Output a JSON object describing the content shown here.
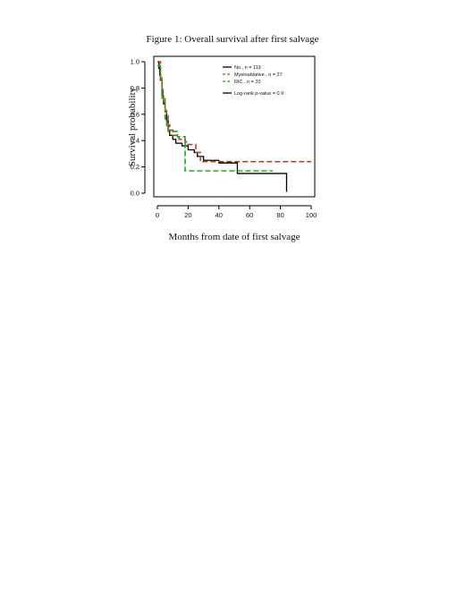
{
  "page": {
    "title": "Figure 1: Overall survival after first salvage"
  },
  "chart_data": {
    "type": "line",
    "xlabel": "Months from date of first salvage",
    "ylabel": "Survival probability",
    "xlim": [
      0,
      100
    ],
    "ylim": [
      0,
      1
    ],
    "xticks": [
      "0",
      "20",
      "40",
      "60",
      "80",
      "100"
    ],
    "yticks": [
      "0.0",
      "0.2",
      "0.4",
      "0.6",
      "0.8",
      "1.0"
    ],
    "legend_position": "top-right",
    "annotation": "Log-rank p-value = 0.9",
    "series": [
      {
        "name": "No , n = 119",
        "color": "#000000",
        "dash": "",
        "points": [
          [
            0,
            1.0
          ],
          [
            1,
            0.95
          ],
          [
            1.5,
            0.9
          ],
          [
            2,
            0.86
          ],
          [
            3,
            0.79
          ],
          [
            3.5,
            0.74
          ],
          [
            4,
            0.68
          ],
          [
            5,
            0.62
          ],
          [
            6,
            0.55
          ],
          [
            7,
            0.48
          ],
          [
            8,
            0.44
          ],
          [
            10,
            0.41
          ],
          [
            12,
            0.38
          ],
          [
            16,
            0.36
          ],
          [
            20,
            0.33
          ],
          [
            24,
            0.31
          ],
          [
            26,
            0.28
          ],
          [
            30,
            0.25
          ],
          [
            40,
            0.23
          ],
          [
            52,
            0.22
          ],
          [
            52,
            0.15
          ],
          [
            84,
            0.15
          ],
          [
            84,
            0.01
          ]
        ]
      },
      {
        "name": "Myeloablative , n = 27",
        "color": "#b5452a",
        "dash": "6,3",
        "points": [
          [
            0,
            1.0
          ],
          [
            2,
            0.85
          ],
          [
            3,
            0.74
          ],
          [
            4,
            0.7
          ],
          [
            5,
            0.63
          ],
          [
            6,
            0.59
          ],
          [
            7,
            0.52
          ],
          [
            8,
            0.48
          ],
          [
            10,
            0.44
          ],
          [
            14,
            0.41
          ],
          [
            18,
            0.39
          ],
          [
            20,
            0.37
          ],
          [
            25,
            0.31
          ],
          [
            28,
            0.24
          ],
          [
            100,
            0.24
          ]
        ]
      },
      {
        "name": "RIC , n = 20",
        "color": "#22aa22",
        "dash": "6,3",
        "points": [
          [
            0,
            0.97
          ],
          [
            2,
            0.9
          ],
          [
            3,
            0.72
          ],
          [
            5,
            0.55
          ],
          [
            6,
            0.5
          ],
          [
            7,
            0.47
          ],
          [
            12,
            0.47
          ],
          [
            13,
            0.43
          ],
          [
            17,
            0.43
          ],
          [
            18,
            0.17
          ],
          [
            52,
            0.17
          ],
          [
            53,
            0.17
          ],
          [
            75,
            0.17
          ]
        ]
      }
    ]
  }
}
